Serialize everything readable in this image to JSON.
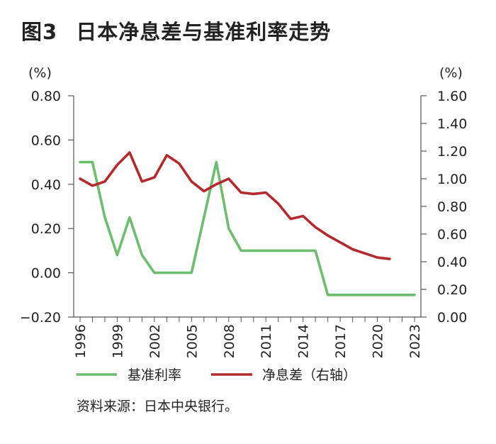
{
  "title": {
    "figure_label": "图3",
    "text": "日本净息差与基准利率走势"
  },
  "source": "资料来源：日本中央银行。",
  "chart_data": {
    "type": "line",
    "title": "日本净息差与基准利率走势",
    "left_unit": "(%)",
    "right_unit": "(%)",
    "x": [
      1996,
      1997,
      1998,
      1999,
      2000,
      2001,
      2002,
      2003,
      2004,
      2005,
      2006,
      2007,
      2008,
      2009,
      2010,
      2011,
      2012,
      2013,
      2014,
      2015,
      2016,
      2017,
      2018,
      2019,
      2020,
      2021,
      2022,
      2023
    ],
    "xticks": [
      "1996",
      "1999",
      "2002",
      "2005",
      "2008",
      "2011",
      "2014",
      "2017",
      "2020",
      "2023"
    ],
    "y_left_lim": [
      -0.2,
      0.8
    ],
    "y_left_ticks": [
      "−0.20",
      "0.00",
      "0.20",
      "0.40",
      "0.60",
      "0.80"
    ],
    "y_right_lim": [
      0.0,
      1.6
    ],
    "y_right_ticks": [
      "0.00",
      "0.20",
      "0.40",
      "0.60",
      "0.80",
      "1.00",
      "1.20",
      "1.40",
      "1.60"
    ],
    "legend_position": "bottom",
    "series": [
      {
        "name": "基准利率",
        "axis": "left",
        "color": "#6cbd6e",
        "points": [
          [
            1996,
            0.5
          ],
          [
            1997,
            0.5
          ],
          [
            1998,
            0.25
          ],
          [
            1999,
            0.08
          ],
          [
            2000,
            0.25
          ],
          [
            2001,
            0.08
          ],
          [
            2002,
            0.0
          ],
          [
            2003,
            0.0
          ],
          [
            2004,
            0.0
          ],
          [
            2005,
            0.0
          ],
          [
            2006,
            0.25
          ],
          [
            2007,
            0.5
          ],
          [
            2008,
            0.2
          ],
          [
            2009,
            0.1
          ],
          [
            2010,
            0.1
          ],
          [
            2011,
            0.1
          ],
          [
            2012,
            0.1
          ],
          [
            2013,
            0.1
          ],
          [
            2014,
            0.1
          ],
          [
            2015,
            0.1
          ],
          [
            2016,
            -0.1
          ],
          [
            2017,
            -0.1
          ],
          [
            2018,
            -0.1
          ],
          [
            2019,
            -0.1
          ],
          [
            2020,
            -0.1
          ],
          [
            2021,
            -0.1
          ],
          [
            2022,
            -0.1
          ],
          [
            2023,
            -0.1
          ]
        ]
      },
      {
        "name": "净息差（右轴）",
        "axis": "right",
        "color": "#b22a2e",
        "points": [
          [
            1996,
            1.0
          ],
          [
            1997,
            0.95
          ],
          [
            1998,
            0.98
          ],
          [
            1999,
            1.1
          ],
          [
            2000,
            1.19
          ],
          [
            2001,
            0.98
          ],
          [
            2002,
            1.01
          ],
          [
            2003,
            1.17
          ],
          [
            2004,
            1.11
          ],
          [
            2005,
            0.98
          ],
          [
            2006,
            0.91
          ],
          [
            2007,
            0.96
          ],
          [
            2008,
            1.0
          ],
          [
            2009,
            0.9
          ],
          [
            2010,
            0.89
          ],
          [
            2011,
            0.9
          ],
          [
            2012,
            0.82
          ],
          [
            2013,
            0.71
          ],
          [
            2014,
            0.73
          ],
          [
            2015,
            0.65
          ],
          [
            2016,
            0.59
          ],
          [
            2017,
            0.54
          ],
          [
            2018,
            0.49
          ],
          [
            2019,
            0.46
          ],
          [
            2020,
            0.43
          ],
          [
            2021,
            0.42
          ]
        ]
      }
    ]
  }
}
